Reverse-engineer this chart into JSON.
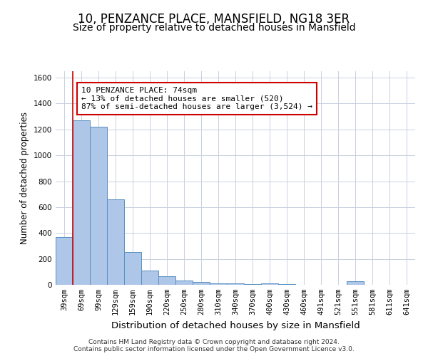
{
  "title": "10, PENZANCE PLACE, MANSFIELD, NG18 3ER",
  "subtitle": "Size of property relative to detached houses in Mansfield",
  "xlabel": "Distribution of detached houses by size in Mansfield",
  "ylabel": "Number of detached properties",
  "bar_color": "#aec6e8",
  "bar_edge_color": "#5a8fc2",
  "grid_color": "#c8d0e0",
  "background_color": "#ffffff",
  "categories": [
    "39sqm",
    "69sqm",
    "99sqm",
    "129sqm",
    "159sqm",
    "190sqm",
    "220sqm",
    "250sqm",
    "280sqm",
    "310sqm",
    "340sqm",
    "370sqm",
    "400sqm",
    "430sqm",
    "460sqm",
    "491sqm",
    "521sqm",
    "551sqm",
    "581sqm",
    "611sqm",
    "641sqm"
  ],
  "values": [
    370,
    1270,
    1220,
    660,
    255,
    110,
    65,
    35,
    22,
    12,
    10,
    8,
    10,
    4,
    2,
    0,
    0,
    30,
    0,
    0,
    0
  ],
  "ylim": [
    0,
    1650
  ],
  "yticks": [
    0,
    200,
    400,
    600,
    800,
    1000,
    1200,
    1400,
    1600
  ],
  "property_line_x": 1,
  "property_line_color": "#cc0000",
  "annotation_text": "10 PENZANCE PLACE: 74sqm\n← 13% of detached houses are smaller (520)\n87% of semi-detached houses are larger (3,524) →",
  "annotation_box_color": "#ffffff",
  "annotation_box_edge_color": "#cc0000",
  "footer_text": "Contains HM Land Registry data © Crown copyright and database right 2024.\nContains public sector information licensed under the Open Government Licence v3.0.",
  "title_fontsize": 12,
  "subtitle_fontsize": 10,
  "xlabel_fontsize": 9.5,
  "ylabel_fontsize": 8.5,
  "tick_fontsize": 7.5,
  "annotation_fontsize": 8,
  "footer_fontsize": 6.5
}
